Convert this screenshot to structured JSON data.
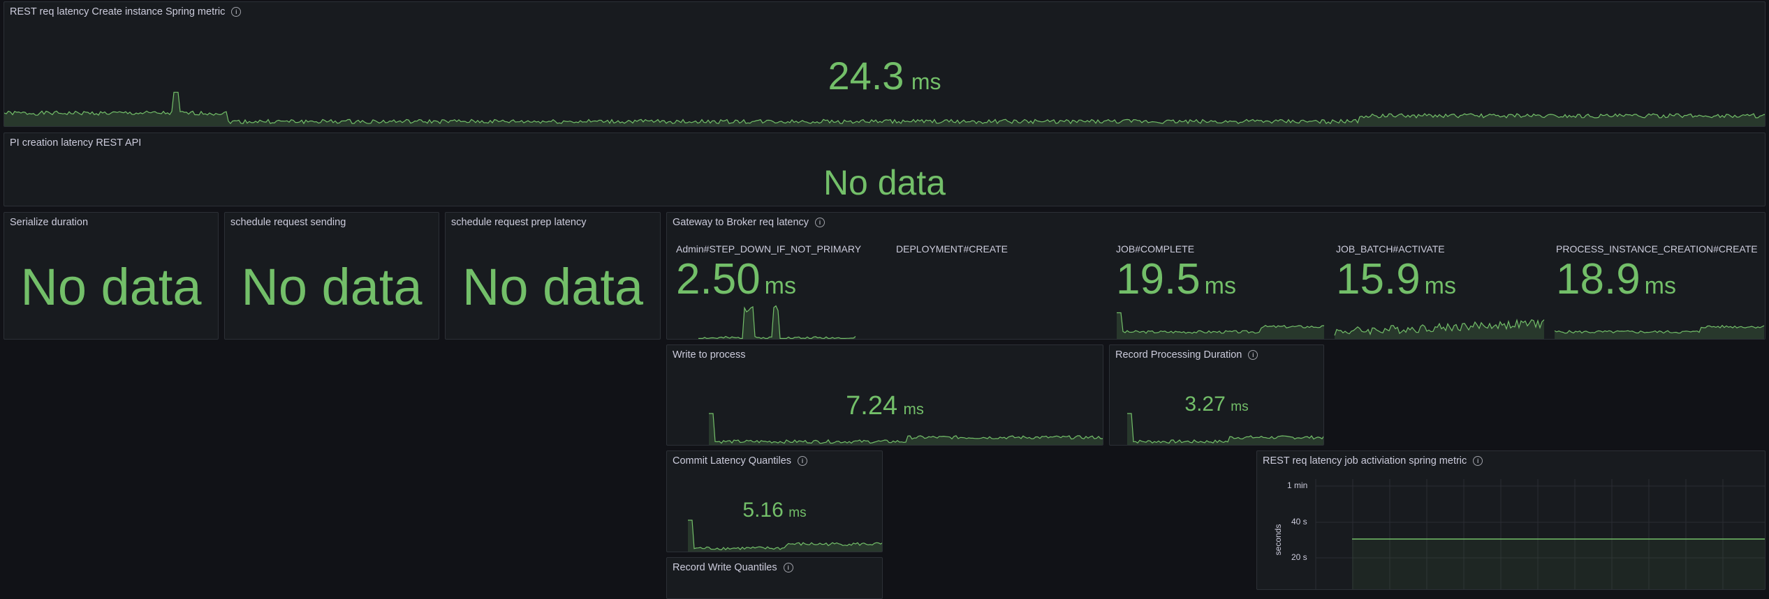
{
  "panels": {
    "rest_create": {
      "title": "REST req latency Create instance Spring metric",
      "value": "24.3",
      "unit": "ms"
    },
    "pi_creation": {
      "title": "PI creation latency REST API",
      "value": "No data"
    },
    "serialize": {
      "title": "Serialize duration",
      "value": "No data"
    },
    "schedule_sending": {
      "title": "schedule request sending",
      "value": "No data"
    },
    "schedule_prep": {
      "title": "schedule request prep latency",
      "value": "No data"
    },
    "gateway": {
      "title": "Gateway to Broker req latency",
      "items": [
        {
          "label": "Admin#STEP_DOWN_IF_NOT_PRIMARY",
          "value": "2.50",
          "unit": "ms"
        },
        {
          "label": "DEPLOYMENT#CREATE",
          "value": "",
          "unit": ""
        },
        {
          "label": "JOB#COMPLETE",
          "value": "19.5",
          "unit": "ms"
        },
        {
          "label": "JOB_BATCH#ACTIVATE",
          "value": "15.9",
          "unit": "ms"
        },
        {
          "label": "PROCESS_INSTANCE_CREATION#CREATE",
          "value": "18.9",
          "unit": "ms"
        }
      ]
    },
    "write_process": {
      "title": "Write to process",
      "value": "7.24",
      "unit": "ms"
    },
    "record_processing": {
      "title": "Record Processing Duration",
      "value": "3.27",
      "unit": "ms"
    },
    "commit_latency": {
      "title": "Commit Latency Quantiles",
      "value": "5.16",
      "unit": "ms"
    },
    "record_write": {
      "title": "Record Write Quantiles"
    },
    "rest_job": {
      "title": "REST req latency job activiation spring metric",
      "y_ticks": [
        "1 min",
        "40 s",
        "20 s"
      ],
      "y_axis_label": "seconds"
    }
  },
  "colors": {
    "value": "#73bf69",
    "panel_bg": "#181b1f",
    "page_bg": "#111217"
  }
}
